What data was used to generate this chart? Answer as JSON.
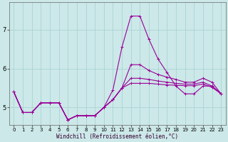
{
  "title": "",
  "xlabel": "Windchill (Refroidissement éolien,°C)",
  "ylabel": "",
  "bg_color": "#cce8e8",
  "grid_color": "#aad4d4",
  "line_color": "#990099",
  "xlim": [
    -0.5,
    23.5
  ],
  "ylim": [
    4.55,
    7.7
  ],
  "yticks": [
    5,
    6,
    7
  ],
  "ytick_labels": [
    "5",
    "6",
    "7"
  ],
  "xticks": [
    0,
    1,
    2,
    3,
    4,
    5,
    6,
    7,
    8,
    9,
    10,
    11,
    12,
    13,
    14,
    15,
    16,
    17,
    18,
    19,
    20,
    21,
    22,
    23
  ],
  "series": [
    [
      5.4,
      4.87,
      4.87,
      5.12,
      5.12,
      5.12,
      4.68,
      4.79,
      4.79,
      4.79,
      5.0,
      5.45,
      6.55,
      7.35,
      7.35,
      6.75,
      6.25,
      5.9,
      5.55,
      5.35,
      5.35,
      5.55,
      5.55,
      5.35
    ],
    [
      5.4,
      4.87,
      4.87,
      5.12,
      5.12,
      5.12,
      4.68,
      4.79,
      4.79,
      4.79,
      5.0,
      5.2,
      5.5,
      6.1,
      6.1,
      5.95,
      5.85,
      5.78,
      5.72,
      5.65,
      5.65,
      5.75,
      5.65,
      5.35
    ],
    [
      5.4,
      4.87,
      4.87,
      5.12,
      5.12,
      5.12,
      4.68,
      4.79,
      4.79,
      4.79,
      5.0,
      5.2,
      5.5,
      5.75,
      5.75,
      5.72,
      5.68,
      5.65,
      5.62,
      5.6,
      5.6,
      5.65,
      5.55,
      5.35
    ],
    [
      5.4,
      4.87,
      4.87,
      5.12,
      5.12,
      5.12,
      4.68,
      4.79,
      4.79,
      4.79,
      5.0,
      5.2,
      5.5,
      5.62,
      5.62,
      5.62,
      5.6,
      5.58,
      5.57,
      5.56,
      5.56,
      5.6,
      5.52,
      5.35
    ]
  ]
}
